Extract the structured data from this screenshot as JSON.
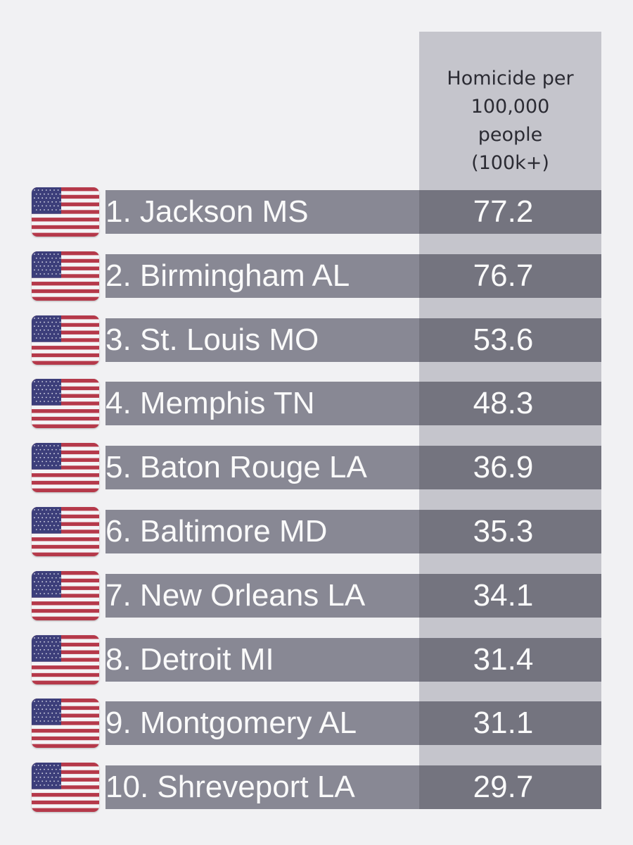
{
  "header": {
    "lines": [
      "Homicide per",
      "100,000",
      "people",
      "(100k+)"
    ]
  },
  "colors": {
    "background": "#f1f1f3",
    "column_bg": "#c5c5cc",
    "name_bar": "#888894",
    "value_bar": "#74747f",
    "text": "#fafafa"
  },
  "flag_icon": "us-flag-icon",
  "chart_data": {
    "type": "table",
    "title": "",
    "columns": [
      "",
      "Homicide per 100,000 people (100k+)"
    ],
    "rows": [
      {
        "label": "1.  Jackson MS",
        "value": "77.2"
      },
      {
        "label": "2.  Birmingham AL",
        "value": "76.7"
      },
      {
        "label": "3.  St. Louis MO",
        "value": "53.6"
      },
      {
        "label": "4.  Memphis TN",
        "value": "48.3"
      },
      {
        "label": "5. Baton Rouge LA",
        "value": "36.9"
      },
      {
        "label": "6.  Baltimore MD",
        "value": "35.3"
      },
      {
        "label": "7. New Orleans LA",
        "value": "34.1"
      },
      {
        "label": "8.  Detroit MI",
        "value": "31.4"
      },
      {
        "label": "9.  Montgomery AL",
        "value": "31.1"
      },
      {
        "label": "10. Shreveport LA",
        "value": "29.7"
      }
    ]
  }
}
